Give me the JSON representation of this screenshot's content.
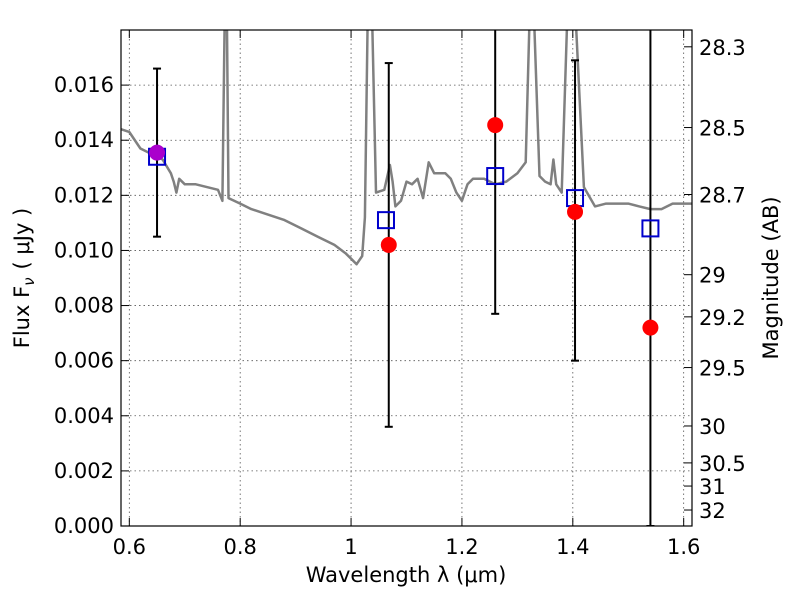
{
  "chart_data": {
    "type": "scatter",
    "xlabel": "Wavelength  λ (μm)",
    "ylabel": "Flux  F",
    "ylabel_sub": "ν",
    "ylabel_unit": "( μJy )",
    "ylabel_right": "Magnitude (AB)",
    "xlim": [
      0.585,
      1.615
    ],
    "ylim": [
      0.0,
      0.018
    ],
    "grid": true,
    "x_ticks": [
      0.6,
      0.8,
      1.0,
      1.2,
      1.4,
      1.6
    ],
    "x_tick_labels": [
      "0.6",
      "0.8",
      "1",
      "1.2",
      "1.4",
      "1.6"
    ],
    "y_ticks": [
      0.0,
      0.002,
      0.004,
      0.006,
      0.008,
      0.01,
      0.012,
      0.014,
      0.016
    ],
    "y_tick_labels": [
      "0.000",
      "0.002",
      "0.004",
      "0.006",
      "0.008",
      "0.010",
      "0.012",
      "0.014",
      "0.016"
    ],
    "right_ticks": [
      {
        "label": "28.3",
        "flux": 0.01739
      },
      {
        "label": "28.5",
        "flux": 0.01446
      },
      {
        "label": "28.7",
        "flux": 0.01203
      },
      {
        "label": "29",
        "flux": 0.00912
      },
      {
        "label": "29.2",
        "flux": 0.00759
      },
      {
        "label": "29.5",
        "flux": 0.00575
      },
      {
        "label": "30",
        "flux": 0.00363
      },
      {
        "label": "30.5",
        "flux": 0.00229
      },
      {
        "label": "31",
        "flux": 0.00145
      },
      {
        "label": "32",
        "flux": 0.00058
      }
    ],
    "series": [
      {
        "kind": "spectrum",
        "color": "#808080",
        "points": [
          [
            0.585,
            0.0144
          ],
          [
            0.6,
            0.0143
          ],
          [
            0.62,
            0.0137
          ],
          [
            0.64,
            0.0135
          ],
          [
            0.66,
            0.0133
          ],
          [
            0.675,
            0.0128
          ],
          [
            0.68,
            0.0125
          ],
          [
            0.685,
            0.0121
          ],
          [
            0.69,
            0.0126
          ],
          [
            0.7,
            0.0124
          ],
          [
            0.72,
            0.0124
          ],
          [
            0.74,
            0.0123
          ],
          [
            0.76,
            0.0122
          ],
          [
            0.768,
            0.0118
          ],
          [
            0.772,
            0.0185
          ],
          [
            0.776,
            0.0185
          ],
          [
            0.779,
            0.0119
          ],
          [
            0.8,
            0.0117
          ],
          [
            0.82,
            0.0115
          ],
          [
            0.85,
            0.0113
          ],
          [
            0.88,
            0.0111
          ],
          [
            0.91,
            0.0108
          ],
          [
            0.94,
            0.0105
          ],
          [
            0.97,
            0.0102
          ],
          [
            0.99,
            0.0099
          ],
          [
            1.0,
            0.0097
          ],
          [
            1.01,
            0.0095
          ],
          [
            1.02,
            0.0098
          ],
          [
            1.025,
            0.0112
          ],
          [
            1.03,
            0.0185
          ],
          [
            1.038,
            0.0185
          ],
          [
            1.045,
            0.0121
          ],
          [
            1.06,
            0.0122
          ],
          [
            1.07,
            0.0131
          ],
          [
            1.075,
            0.0125
          ],
          [
            1.08,
            0.0116
          ],
          [
            1.09,
            0.0118
          ],
          [
            1.1,
            0.0125
          ],
          [
            1.11,
            0.0124
          ],
          [
            1.12,
            0.0126
          ],
          [
            1.13,
            0.0119
          ],
          [
            1.14,
            0.0132
          ],
          [
            1.15,
            0.0128
          ],
          [
            1.17,
            0.0128
          ],
          [
            1.18,
            0.0126
          ],
          [
            1.19,
            0.0121
          ],
          [
            1.2,
            0.0118
          ],
          [
            1.21,
            0.0124
          ],
          [
            1.22,
            0.0126
          ],
          [
            1.24,
            0.0126
          ],
          [
            1.26,
            0.0124
          ],
          [
            1.28,
            0.0125
          ],
          [
            1.3,
            0.0128
          ],
          [
            1.315,
            0.0132
          ],
          [
            1.322,
            0.0185
          ],
          [
            1.33,
            0.0185
          ],
          [
            1.34,
            0.0127
          ],
          [
            1.35,
            0.0125
          ],
          [
            1.36,
            0.0124
          ],
          [
            1.365,
            0.0133
          ],
          [
            1.37,
            0.0124
          ],
          [
            1.38,
            0.0121
          ],
          [
            1.39,
            0.0185
          ],
          [
            1.405,
            0.0185
          ],
          [
            1.42,
            0.0123
          ],
          [
            1.44,
            0.0116
          ],
          [
            1.46,
            0.0117
          ],
          [
            1.48,
            0.0117
          ],
          [
            1.5,
            0.0117
          ],
          [
            1.52,
            0.0116
          ],
          [
            1.54,
            0.0115
          ],
          [
            1.56,
            0.0115
          ],
          [
            1.58,
            0.0117
          ],
          [
            1.6,
            0.0117
          ],
          [
            1.615,
            0.0117
          ]
        ]
      },
      {
        "kind": "model_photometry",
        "marker": "open-square",
        "color": "#0000cc",
        "points": [
          [
            0.65,
            0.0134
          ],
          [
            1.063,
            0.0111
          ],
          [
            1.26,
            0.0127
          ],
          [
            1.404,
            0.0119
          ],
          [
            1.54,
            0.0108
          ]
        ]
      },
      {
        "kind": "observed_photometry",
        "marker": "filled-circle",
        "color": "#ff0000",
        "points": [
          {
            "x": 0.65,
            "y": 0.01355,
            "err_lo": 0.0105,
            "err_hi": 0.0166,
            "color": "#aa00cc"
          },
          {
            "x": 1.068,
            "y": 0.0102,
            "err_lo": 0.0036,
            "err_hi": 0.0168
          },
          {
            "x": 1.26,
            "y": 0.01455,
            "err_lo": 0.0077,
            "err_hi": 0.0185
          },
          {
            "x": 1.404,
            "y": 0.0114,
            "err_lo": 0.006,
            "err_hi": 0.0169
          },
          {
            "x": 1.54,
            "y": 0.0072,
            "err_lo": 0.0,
            "err_hi": 0.0185
          }
        ]
      }
    ]
  }
}
